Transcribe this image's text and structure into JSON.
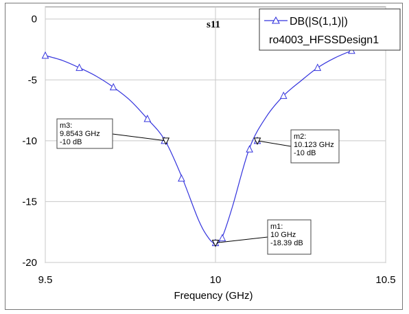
{
  "chart_data": {
    "type": "line",
    "title": "s11",
    "xlabel": "Frequency (GHz)",
    "ylabel": "",
    "xlim": [
      9.5,
      10.5
    ],
    "ylim": [
      -20,
      1
    ],
    "xticks": [
      "9.5",
      "10",
      "10.5"
    ],
    "yticks": [
      "0",
      "-5",
      "-10",
      "-15",
      "-20"
    ],
    "grid": true,
    "legend_position": "top-right",
    "legend_lines": [
      "DB(|S(1,1)|)",
      "ro4003_HFSSDesign1"
    ],
    "series": [
      {
        "name": "DB(|S(1,1)|)",
        "color": "#3333dd",
        "x": [
          9.5,
          9.55,
          9.6,
          9.65,
          9.7,
          9.75,
          9.8,
          9.85,
          9.9,
          9.95,
          9.98,
          10.0,
          10.02,
          10.05,
          10.1,
          10.15,
          10.2,
          10.25,
          10.3,
          10.35,
          10.4,
          10.45,
          10.5
        ],
        "y": [
          -3.0,
          -3.4,
          -4.0,
          -4.7,
          -5.6,
          -6.7,
          -8.2,
          -9.9,
          -12.9,
          -16.5,
          -18.0,
          -18.4,
          -17.9,
          -15.4,
          -10.6,
          -8.0,
          -6.3,
          -5.1,
          -4.0,
          -3.2,
          -2.6,
          -2.1,
          -1.7
        ]
      }
    ],
    "marker_points": {
      "x": [
        9.5,
        9.6,
        9.7,
        9.8,
        9.85,
        9.9,
        10.0,
        10.02,
        10.1,
        10.123,
        10.2,
        10.3,
        10.4
      ],
      "y": [
        -3.0,
        -4.0,
        -5.6,
        -8.2,
        -10.0,
        -13.1,
        -18.4,
        -18.0,
        -10.7,
        -10.0,
        -6.3,
        -4.0,
        -2.6
      ]
    },
    "markers": [
      {
        "id": "m3",
        "label": "m3:",
        "freq": "9.8543 GHz",
        "value": "-10 dB",
        "x": 9.8543,
        "y": -10.0
      },
      {
        "id": "m2",
        "label": "m2:",
        "freq": "10.123 GHz",
        "value": "-10 dB",
        "x": 10.123,
        "y": -10.0
      },
      {
        "id": "m1",
        "label": "m1:",
        "freq": "10 GHz",
        "value": "-18.39 dB",
        "x": 10.0,
        "y": -18.39
      }
    ]
  }
}
